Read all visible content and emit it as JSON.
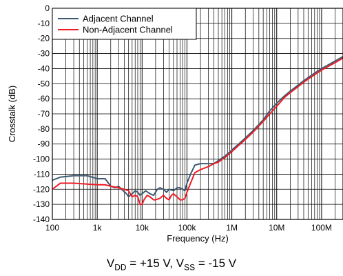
{
  "chart_data": {
    "type": "line",
    "xlabel": "Frequency (Hz)",
    "ylabel": "Crosstalk (dB)",
    "xscale": "log",
    "xlim": [
      100,
      300000000
    ],
    "ylim": [
      -140,
      0
    ],
    "x_ticks": [
      {
        "value": 100,
        "label": "100"
      },
      {
        "value": 1000,
        "label": "1k"
      },
      {
        "value": 10000,
        "label": "10k"
      },
      {
        "value": 100000,
        "label": "100k"
      },
      {
        "value": 1000000,
        "label": "1M"
      },
      {
        "value": 10000000,
        "label": "10M"
      },
      {
        "value": 100000000,
        "label": "100M"
      }
    ],
    "y_ticks": [
      0,
      -10,
      -20,
      -30,
      -40,
      -50,
      -60,
      -70,
      -80,
      -90,
      -100,
      -110,
      -120,
      -130,
      -140
    ],
    "grid": true,
    "legend_position": "top-left",
    "series": [
      {
        "name": "Adjacent Channel",
        "color": "#3d5a72",
        "points": [
          [
            100,
            -114
          ],
          [
            150,
            -112
          ],
          [
            300,
            -111
          ],
          [
            600,
            -111
          ],
          [
            1000,
            -113
          ],
          [
            1500,
            -113
          ],
          [
            2000,
            -118
          ],
          [
            2500,
            -119
          ],
          [
            3000,
            -118
          ],
          [
            3500,
            -120
          ],
          [
            4500,
            -123
          ],
          [
            5000,
            -125
          ],
          [
            6000,
            -123
          ],
          [
            7000,
            -121
          ],
          [
            8000,
            -122
          ],
          [
            9000,
            -124
          ],
          [
            10000,
            -123
          ],
          [
            12000,
            -121
          ],
          [
            15000,
            -123
          ],
          [
            18000,
            -124
          ],
          [
            22000,
            -120
          ],
          [
            25000,
            -119
          ],
          [
            30000,
            -120
          ],
          [
            35000,
            -122
          ],
          [
            40000,
            -120
          ],
          [
            50000,
            -121
          ],
          [
            55000,
            -120
          ],
          [
            60000,
            -119
          ],
          [
            70000,
            -119
          ],
          [
            80000,
            -120
          ],
          [
            90000,
            -121
          ],
          [
            100000,
            -116
          ],
          [
            120000,
            -110
          ],
          [
            150000,
            -104
          ],
          [
            200000,
            -103
          ],
          [
            300000,
            -103
          ],
          [
            400000,
            -103
          ],
          [
            500000,
            -101
          ],
          [
            700000,
            -98
          ],
          [
            1000000,
            -94
          ],
          [
            2000000,
            -86
          ],
          [
            3000000,
            -81
          ],
          [
            5000000,
            -74
          ],
          [
            7000000,
            -68
          ],
          [
            10000000,
            -63
          ],
          [
            15000000,
            -58
          ],
          [
            20000000,
            -55
          ],
          [
            40000000,
            -48
          ],
          [
            70000000,
            -43
          ],
          [
            100000000,
            -40
          ],
          [
            200000000,
            -35
          ],
          [
            300000000,
            -32
          ]
        ]
      },
      {
        "name": "Non-Adjacent Channel",
        "color": "#ee1c24",
        "points": [
          [
            100,
            -120
          ],
          [
            150,
            -116
          ],
          [
            300,
            -116
          ],
          [
            1000,
            -117
          ],
          [
            1500,
            -117
          ],
          [
            2000,
            -118
          ],
          [
            3000,
            -119
          ],
          [
            4000,
            -120
          ],
          [
            5000,
            -121
          ],
          [
            6000,
            -125
          ],
          [
            7000,
            -124
          ],
          [
            8000,
            -125
          ],
          [
            9000,
            -130
          ],
          [
            10000,
            -130
          ],
          [
            11000,
            -127
          ],
          [
            13000,
            -124
          ],
          [
            15000,
            -125
          ],
          [
            18000,
            -127
          ],
          [
            20000,
            -127
          ],
          [
            25000,
            -126
          ],
          [
            30000,
            -124
          ],
          [
            35000,
            -126
          ],
          [
            40000,
            -127
          ],
          [
            45000,
            -124
          ],
          [
            50000,
            -123
          ],
          [
            60000,
            -125
          ],
          [
            70000,
            -127
          ],
          [
            80000,
            -127
          ],
          [
            90000,
            -126
          ],
          [
            100000,
            -122
          ],
          [
            120000,
            -116
          ],
          [
            150000,
            -109
          ],
          [
            200000,
            -107
          ],
          [
            300000,
            -105
          ],
          [
            400000,
            -103
          ],
          [
            500000,
            -102
          ],
          [
            700000,
            -99
          ],
          [
            1000000,
            -95
          ],
          [
            2000000,
            -87
          ],
          [
            3000000,
            -82
          ],
          [
            5000000,
            -75
          ],
          [
            7000000,
            -70
          ],
          [
            10000000,
            -65
          ],
          [
            15000000,
            -59
          ],
          [
            20000000,
            -56
          ],
          [
            40000000,
            -49
          ],
          [
            70000000,
            -44
          ],
          [
            100000000,
            -41
          ],
          [
            200000000,
            -36
          ],
          [
            300000000,
            -33
          ]
        ]
      }
    ],
    "caption": {
      "main": "V",
      "sub1": "DD",
      "mid": " = +15 V, V",
      "sub2": "SS",
      "end": " = -15 V"
    }
  }
}
